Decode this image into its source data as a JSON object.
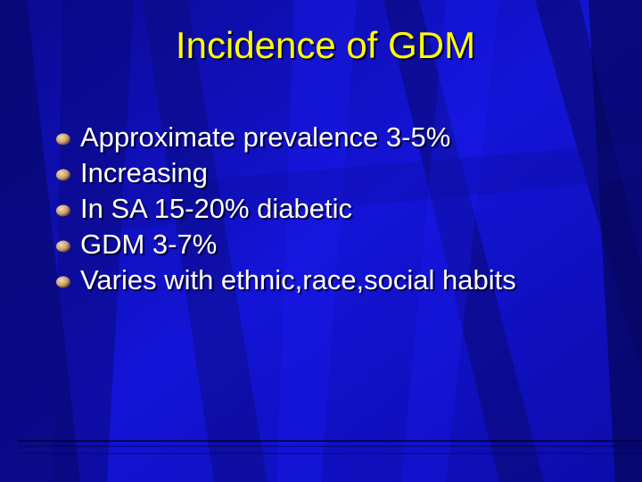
{
  "slide": {
    "title": "Incidence of GDM",
    "bullets": [
      {
        "text": "Approximate prevalence 3-5%",
        "icon": "bullet-sphere-icon"
      },
      {
        "text": "Increasing",
        "icon": "bullet-sphere-icon"
      },
      {
        "text": "In SA 15-20%  diabetic",
        "icon": "bullet-sphere-icon"
      },
      {
        "text": "GDM  3-7%",
        "icon": "bullet-sphere-icon"
      },
      {
        "text": "Varies with ethnic,race,social habits",
        "icon": "bullet-sphere-icon"
      }
    ]
  },
  "colors": {
    "background": "#1010c0",
    "title": "#ffff00",
    "body_text": "#ffffff",
    "bullet": "#c8a070"
  }
}
